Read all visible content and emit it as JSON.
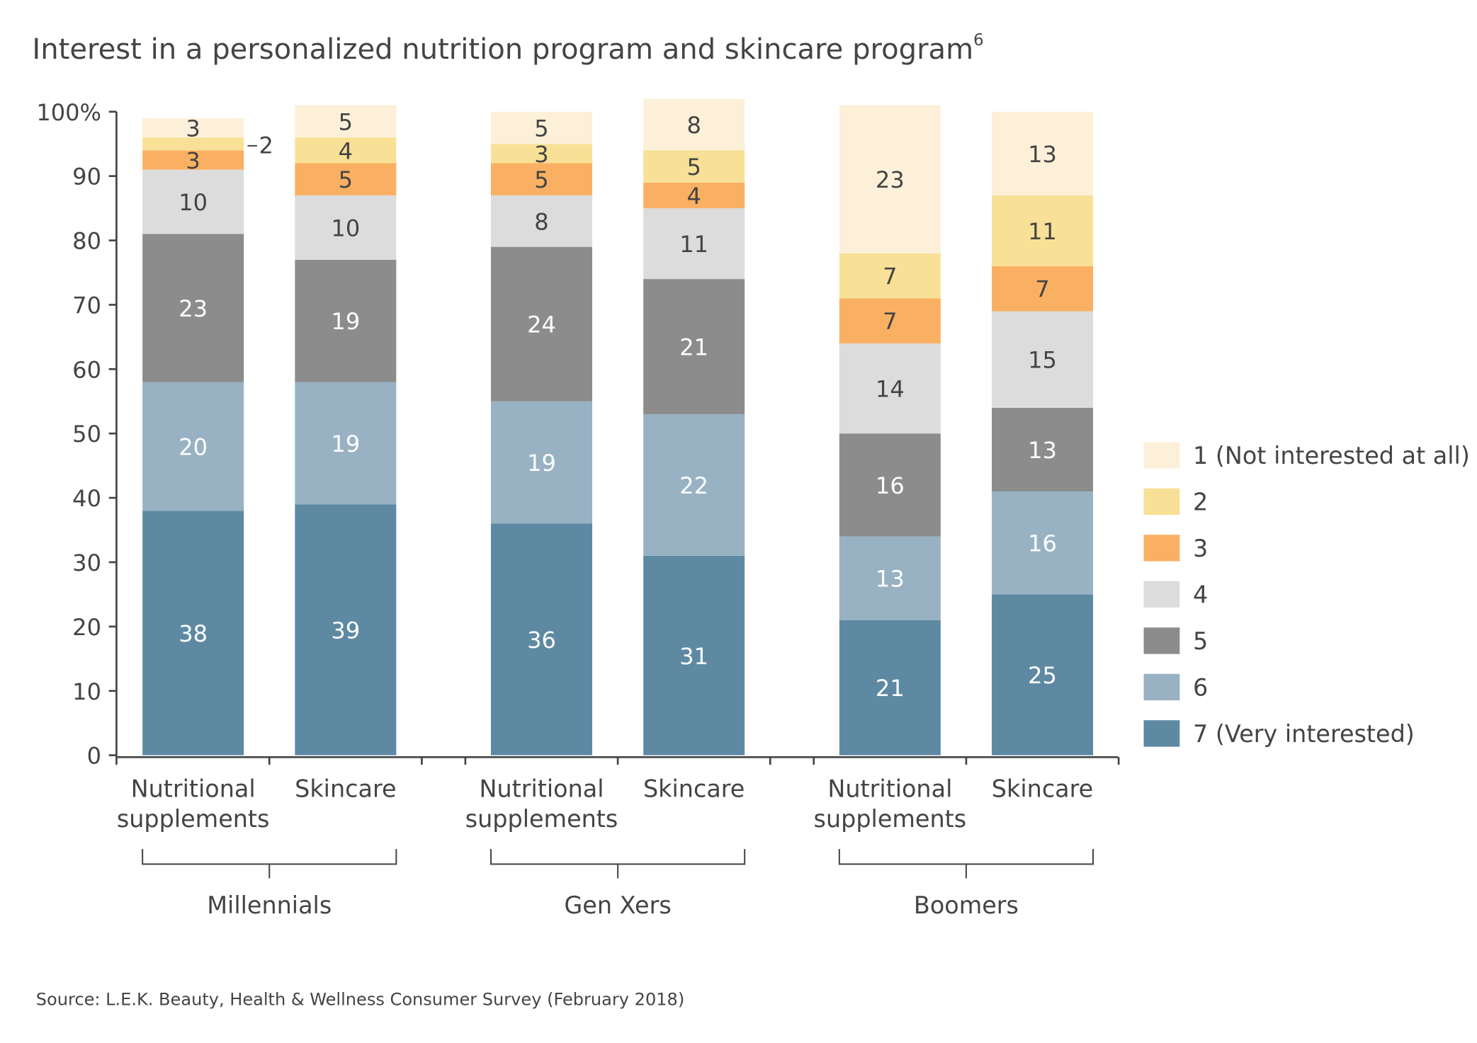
{
  "chart_data": {
    "type": "stacked_bar",
    "title": "Interest in a personalized nutrition program and skincare program",
    "title_footnote": "6",
    "categories": [
      [
        "Nutritional",
        "supplements"
      ],
      [
        "Skincare"
      ],
      [
        "Nutritional",
        "supplements"
      ],
      [
        "Skincare"
      ],
      [
        "Nutritional",
        "supplements"
      ],
      [
        "Skincare"
      ]
    ],
    "groups": [
      "Millennials",
      "Gen Xers",
      "Boomers"
    ],
    "series": [
      {
        "name": "1 (Not interested at all)",
        "color": "#fcf0d9",
        "values": [
          3,
          5,
          5,
          8,
          23,
          13
        ]
      },
      {
        "name": "2",
        "color": "#f8e196",
        "values": [
          2,
          4,
          3,
          5,
          7,
          11
        ]
      },
      {
        "name": "3",
        "color": "#fab062",
        "values": [
          3,
          5,
          5,
          4,
          7,
          7
        ]
      },
      {
        "name": "4",
        "color": "#dcdcdc",
        "values": [
          10,
          10,
          8,
          11,
          14,
          15
        ]
      },
      {
        "name": "5",
        "color": "#8c8c8c",
        "values": [
          23,
          19,
          24,
          21,
          16,
          13
        ]
      },
      {
        "name": "6",
        "color": "#98b2c3",
        "values": [
          20,
          19,
          19,
          22,
          13,
          16
        ]
      },
      {
        "name": "7 (Very interested)",
        "color": "#5e89a3",
        "values": [
          38,
          39,
          36,
          31,
          21,
          25
        ]
      }
    ],
    "ylim": [
      0,
      100
    ],
    "yticks": [
      0,
      10,
      20,
      30,
      40,
      50,
      60,
      70,
      80,
      90,
      {
        "value": 100,
        "label": "100%"
      }
    ],
    "source": "Source: L.E.K. Beauty, Health & Wellness Consumer Survey (February 2018)"
  }
}
